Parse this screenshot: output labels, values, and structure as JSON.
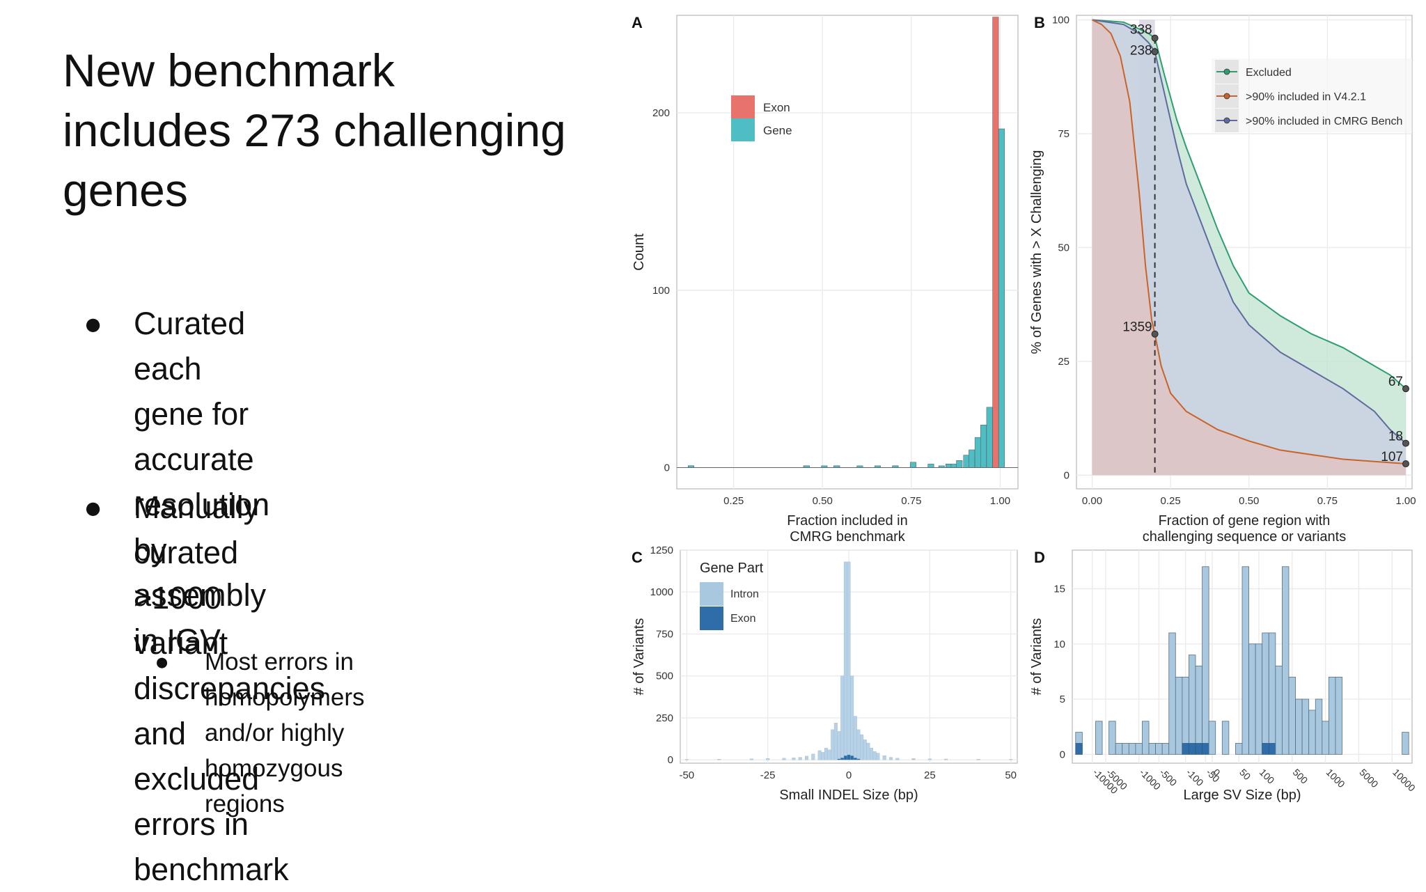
{
  "slide": {
    "title_lines": [
      "New benchmark",
      "includes 273 challenging",
      "genes"
    ],
    "bullets": [
      [
        "Curated each gene for",
        "accurate resolution by",
        "assembly in IGV"
      ],
      [
        "Manually curated >1000",
        "variant discrepancies and",
        "excluded errors in benchmark"
      ]
    ],
    "sub_bullet": [
      "Most errors in homopolymers",
      "and/or highly homozygous",
      "regions"
    ],
    "bullet_glyph": "●"
  },
  "chart_data": [
    {
      "panel": "A",
      "type": "bar",
      "xlabel": "Fraction included in CMRG benchmark",
      "xlabel_lines": [
        "Fraction included in",
        "CMRG benchmark"
      ],
      "ylabel": "Count",
      "xlim": [
        0.09,
        1.05
      ],
      "ylim": [
        -12,
        255
      ],
      "xticks": [
        "0.25",
        "0.50",
        "0.75",
        "1.00"
      ],
      "xtick_values": [
        0.25,
        0.5,
        0.75,
        1.0
      ],
      "yticks": [
        "0",
        "100",
        "200"
      ],
      "ytick_values": [
        0,
        100,
        200
      ],
      "legend": {
        "position": "top-left",
        "items": [
          {
            "label": "Exon",
            "color": "#E8736C"
          },
          {
            "label": "Gene",
            "color": "#4FBEC4"
          }
        ]
      },
      "bin_width": 0.0166,
      "series": [
        {
          "name": "Exon",
          "color": "#E8736C",
          "x": [
            0.13,
            0.455,
            0.505,
            0.54,
            0.605,
            0.655,
            0.705,
            0.755,
            0.805,
            0.855,
            0.905,
            0.937,
            0.97,
            0.987
          ],
          "values": [
            1,
            1,
            0,
            1,
            0,
            0,
            1,
            1,
            1,
            2,
            3,
            4,
            5,
            254
          ]
        },
        {
          "name": "Gene",
          "color": "#4FBEC4",
          "x": [
            0.13,
            0.455,
            0.505,
            0.54,
            0.605,
            0.655,
            0.705,
            0.755,
            0.805,
            0.835,
            0.855,
            0.87,
            0.885,
            0.905,
            0.92,
            0.937,
            0.953,
            0.97,
            1.004
          ],
          "values": [
            1,
            1,
            1,
            1,
            1,
            1,
            1,
            3,
            2,
            1,
            2,
            2,
            4,
            7,
            10,
            17,
            24,
            34,
            191
          ]
        }
      ]
    },
    {
      "panel": "B",
      "type": "area",
      "xlabel": "Fraction of gene region with challenging sequence or variants",
      "xlabel_lines": [
        "Fraction of gene region with",
        "challenging sequence or variants"
      ],
      "ylabel": "% of Genes with > X Challenging",
      "xlim": [
        -0.05,
        1.02
      ],
      "ylim": [
        -3,
        101
      ],
      "xticks": [
        "0.00",
        "0.25",
        "0.50",
        "0.75",
        "1.00"
      ],
      "xtick_values": [
        0,
        0.25,
        0.5,
        0.75,
        1.0
      ],
      "yticks": [
        "0",
        "25",
        "50",
        "75",
        "100"
      ],
      "ytick_values": [
        0,
        25,
        50,
        75,
        100
      ],
      "legend": {
        "position": "top-right",
        "items": [
          {
            "label": "Excluded",
            "color": "#2E9E6E"
          },
          {
            "label": ">90% included in V4.2.1",
            "color": "#C8642A"
          },
          {
            "label": ">90% included in CMRG Bench",
            "color": "#5E6B9E"
          }
        ]
      },
      "cutoff_x": 0.2,
      "series": [
        {
          "name": "Excluded",
          "color": "#2E9E6E",
          "fill": "#BFE3CF",
          "x": [
            0,
            0.1,
            0.15,
            0.18,
            0.2,
            0.23,
            0.27,
            0.3,
            0.35,
            0.4,
            0.45,
            0.5,
            0.6,
            0.7,
            0.8,
            0.9,
            0.95,
            1.0
          ],
          "y": [
            100,
            99.5,
            98,
            97,
            96,
            88,
            78,
            72,
            63,
            54,
            46,
            40,
            35,
            31,
            28,
            24,
            22,
            19
          ]
        },
        {
          "name": ">90% included in CMRG Bench",
          "color": "#5E6B9E",
          "fill": "#C9CCE3",
          "x": [
            0,
            0.1,
            0.15,
            0.18,
            0.2,
            0.23,
            0.27,
            0.3,
            0.35,
            0.4,
            0.45,
            0.5,
            0.6,
            0.7,
            0.8,
            0.9,
            0.95,
            1.0
          ],
          "y": [
            100,
            99,
            97,
            95,
            93,
            84,
            72,
            64,
            55,
            46,
            38,
            33,
            27,
            23,
            19,
            14,
            10,
            7
          ]
        },
        {
          "name": ">90% included in V4.2.1",
          "color": "#C8642A",
          "fill": "#E3C2BE",
          "x": [
            0,
            0.03,
            0.06,
            0.09,
            0.12,
            0.15,
            0.17,
            0.19,
            0.2,
            0.22,
            0.25,
            0.3,
            0.35,
            0.4,
            0.5,
            0.6,
            0.7,
            0.8,
            0.9,
            1.0
          ],
          "y": [
            100,
            99,
            97,
            92,
            82,
            62,
            46,
            34,
            31,
            24,
            18,
            14,
            12,
            10,
            7.5,
            5.5,
            4.5,
            3.5,
            3,
            2.5
          ]
        }
      ],
      "annotations": [
        {
          "text": "338",
          "x": 0.2,
          "y": 96
        },
        {
          "text": "238",
          "x": 0.2,
          "y": 93
        },
        {
          "text": "1359",
          "x": 0.2,
          "y": 31
        },
        {
          "text": "67",
          "x": 1.0,
          "y": 19
        },
        {
          "text": "18",
          "x": 1.0,
          "y": 7
        },
        {
          "text": "107",
          "x": 1.0,
          "y": 2.5
        }
      ],
      "shaded_band": [
        0.15,
        0.2
      ]
    },
    {
      "panel": "C",
      "type": "bar",
      "xlabel": "Small INDEL Size (bp)",
      "ylabel": "# of Variants",
      "xlim": [
        -52,
        52
      ],
      "ylim": [
        -20,
        1250
      ],
      "xticks": [
        "-50",
        "-25",
        "0",
        "25",
        "50"
      ],
      "xtick_values": [
        -50,
        -25,
        0,
        25,
        50
      ],
      "yticks": [
        "0",
        "250",
        "500",
        "750",
        "1000",
        "1250"
      ],
      "ytick_values": [
        0,
        250,
        500,
        750,
        1000,
        1250
      ],
      "legend": {
        "position": "top-left",
        "title": "Gene Part",
        "items": [
          {
            "label": "Intron",
            "color": "#A8C8E0"
          },
          {
            "label": "Exon",
            "color": "#2E6DA8"
          }
        ]
      },
      "series": [
        {
          "name": "Intron",
          "color": "#B7D2E6",
          "x": [
            -50,
            -40,
            -30,
            -25,
            -20,
            -17,
            -15,
            -13,
            -11,
            -9,
            -8,
            -7,
            -6,
            -5,
            -4,
            -3,
            -2,
            -1,
            0,
            1,
            2,
            3,
            4,
            5,
            6,
            7,
            8,
            9,
            11,
            13,
            15,
            20,
            25,
            30,
            40,
            50
          ],
          "values": [
            3,
            4,
            6,
            8,
            10,
            12,
            15,
            22,
            35,
            55,
            45,
            70,
            60,
            180,
            220,
            170,
            500,
            1180,
            1180,
            500,
            260,
            180,
            150,
            120,
            100,
            70,
            50,
            40,
            25,
            15,
            10,
            8,
            6,
            5,
            4,
            3
          ]
        },
        {
          "name": "Exon",
          "color": "#2E6DA8",
          "x": [
            -3,
            -2,
            -1,
            0,
            1,
            2,
            3
          ],
          "values": [
            6,
            12,
            25,
            30,
            25,
            12,
            6
          ]
        }
      ]
    },
    {
      "panel": "D",
      "type": "bar",
      "xlabel": "Large SV Size (bp)",
      "ylabel": "# of Variants",
      "ylim": [
        -0.8,
        18.5
      ],
      "yticks": [
        "0",
        "5",
        "10",
        "15"
      ],
      "ytick_values": [
        0,
        5,
        10,
        15
      ],
      "xticks": [
        "-10000",
        "-5000",
        "-1000",
        "-500",
        "-100",
        "-50",
        "0",
        "50",
        "100",
        "500",
        "1000",
        "5000",
        "10000"
      ],
      "xtick_positions": [
        2.5,
        4.5,
        9.5,
        12.5,
        16.5,
        19.5,
        20.5,
        24.5,
        27.5,
        32.5,
        37.5,
        42.5,
        47.5
      ],
      "categories_count": 50,
      "series": [
        {
          "name": "Intron",
          "color": "#A8C8E0",
          "values": [
            1,
            0,
            0,
            3,
            0,
            3,
            1,
            1,
            1,
            1,
            3,
            1,
            1,
            1,
            11,
            7,
            6,
            8,
            7,
            16,
            3,
            0,
            3,
            0,
            1,
            17,
            10,
            10,
            10,
            10,
            8,
            17,
            7,
            5,
            5,
            4,
            5,
            3,
            7,
            7,
            0,
            0,
            0,
            0,
            0,
            0,
            0,
            0,
            0,
            2
          ]
        },
        {
          "name": "Exon",
          "color": "#2E6DA8",
          "values": [
            1,
            0,
            0,
            0,
            0,
            0,
            0,
            0,
            0,
            0,
            0,
            0,
            0,
            0,
            0,
            0,
            1,
            1,
            1,
            1,
            0,
            0,
            0,
            0,
            0,
            0,
            0,
            0,
            1,
            1,
            0,
            0,
            0,
            0,
            0,
            0,
            0,
            0,
            0,
            0,
            0,
            0,
            0,
            0,
            0,
            0,
            0,
            0,
            0,
            0
          ]
        }
      ]
    }
  ]
}
